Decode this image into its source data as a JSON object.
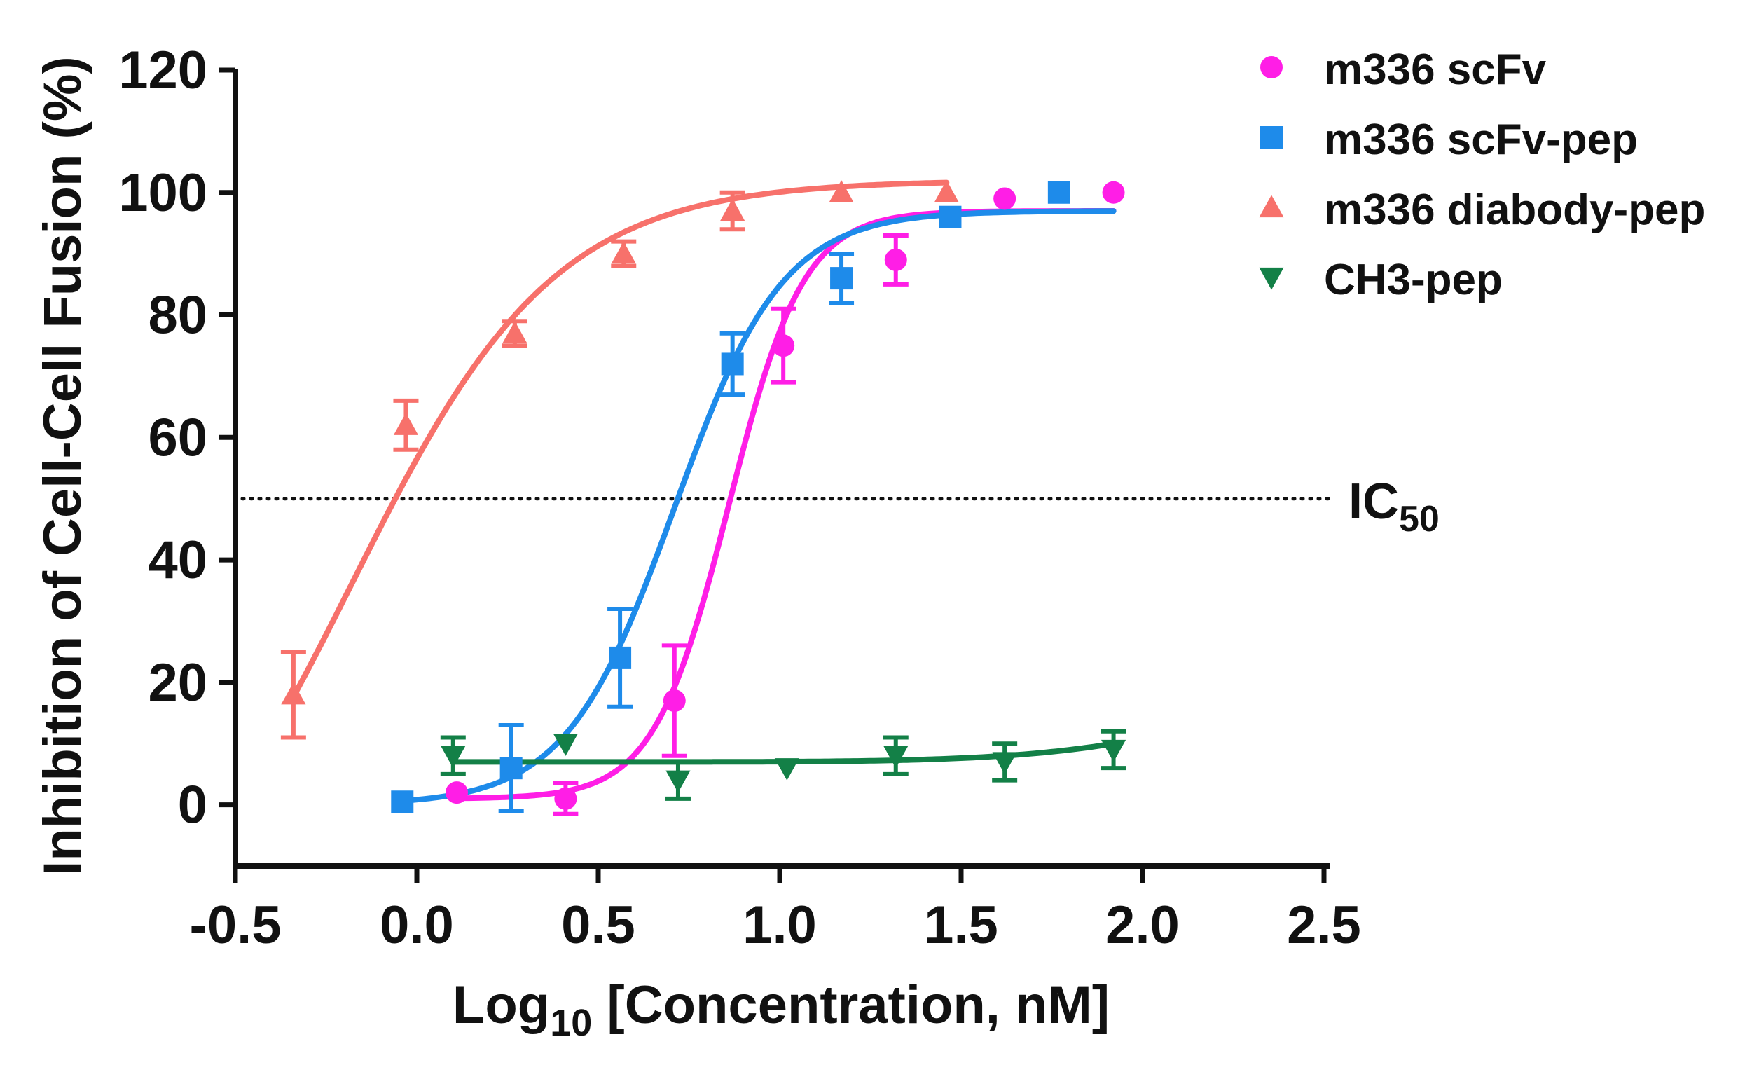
{
  "chart_data": {
    "type": "scatter",
    "xlabel": {
      "main": "Log",
      "sub": "10",
      "rest": " [Concentration, nM]"
    },
    "ylabel": "Inhibition of Cell-Cell Fusion (%)",
    "xlim": [
      -0.5,
      2.5
    ],
    "ylim": [
      -10,
      120
    ],
    "xticks": [
      -0.5,
      0.0,
      0.5,
      1.0,
      1.5,
      2.0,
      2.5
    ],
    "xtick_labels": [
      "-0.5",
      "0.0",
      "0.5",
      "1.0",
      "1.5",
      "2.0",
      "2.5"
    ],
    "yticks": [
      0,
      20,
      40,
      60,
      80,
      100,
      120
    ],
    "ytick_labels": [
      "0",
      "20",
      "40",
      "60",
      "80",
      "100",
      "120"
    ],
    "grid": false,
    "legend_position": "top-right",
    "reference_line": {
      "y": 50,
      "style": "dotted",
      "label_main": "IC",
      "label_sub": "50"
    },
    "series": [
      {
        "name": "m336 scFv",
        "marker": "circle",
        "color": "#ff1ee6",
        "x": [
          0.11,
          0.41,
          0.71,
          1.01,
          1.32,
          1.62,
          1.92
        ],
        "y": [
          2,
          1,
          17,
          75,
          89,
          99,
          100
        ],
        "err": [
          0,
          2.5,
          9,
          6,
          4,
          0,
          0
        ],
        "fit": {
          "bottom": 1,
          "top": 97,
          "logec50": 0.86,
          "hill": 4.2,
          "x_range": [
            0.11,
            1.92
          ]
        }
      },
      {
        "name": "m336 scFv-pep",
        "marker": "square",
        "color": "#1e8bea",
        "x": [
          -0.04,
          0.26,
          0.56,
          0.87,
          1.17,
          1.47,
          1.77
        ],
        "y": [
          0.5,
          6,
          24,
          72,
          86,
          96,
          100
        ],
        "err": [
          0,
          7,
          8,
          5,
          4,
          0,
          0
        ],
        "fit": {
          "bottom": 0,
          "top": 97,
          "logec50": 0.71,
          "hill": 2.9,
          "x_range": [
            -0.04,
            1.92
          ]
        }
      },
      {
        "name": "m336 diabody-pep",
        "marker": "triangle-up",
        "color": "#f7716b",
        "x": [
          -0.34,
          -0.03,
          0.27,
          0.57,
          0.87,
          1.17,
          1.46
        ],
        "y": [
          18,
          62,
          77,
          90,
          97,
          100,
          100
        ],
        "err": [
          7,
          4,
          2,
          2,
          3,
          0,
          0
        ],
        "fit": {
          "bottom": -30,
          "top": 102,
          "logec50": -0.18,
          "hill": 1.55,
          "x_range": [
            -0.34,
            1.46
          ]
        }
      },
      {
        "name": "CH3-pep",
        "marker": "triangle-down",
        "color": "#138047",
        "x": [
          0.1,
          0.41,
          0.72,
          1.02,
          1.32,
          1.62,
          1.92
        ],
        "y": [
          8,
          10,
          4,
          6,
          8,
          7,
          9
        ],
        "err": [
          3,
          0,
          3,
          0,
          3,
          3,
          3
        ],
        "fit": {
          "type": "flat-rise",
          "base": 7,
          "end": 10,
          "x_range": [
            0.1,
            1.92
          ]
        }
      }
    ]
  }
}
